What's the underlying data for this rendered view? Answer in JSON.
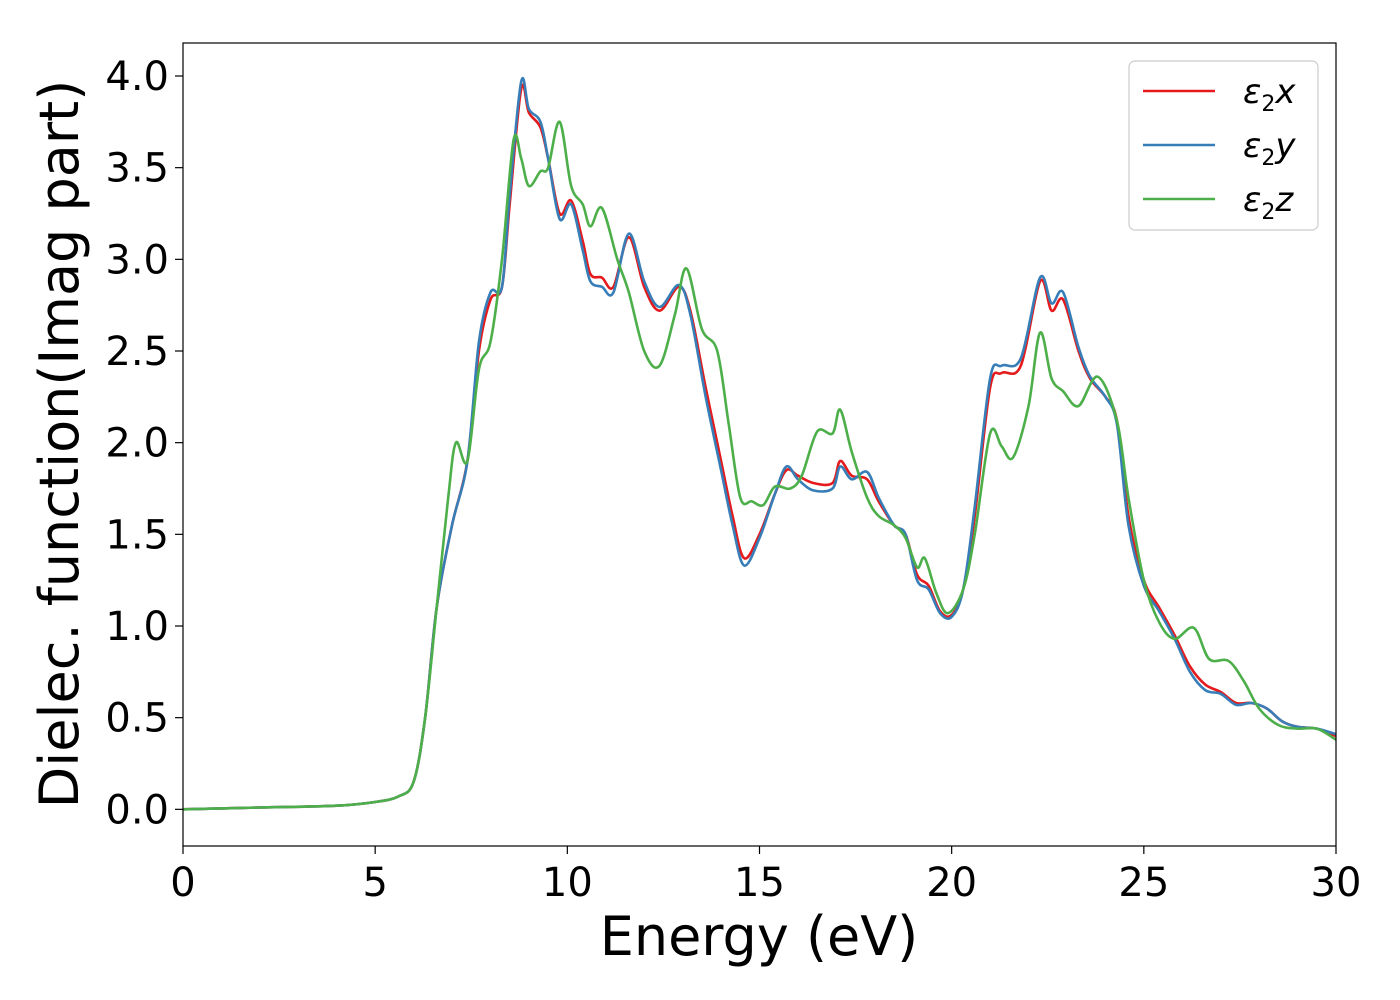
{
  "chart_data": {
    "type": "line",
    "title": "",
    "xlabel": "Energy (eV)",
    "ylabel": "Dielec. function(Imag part)",
    "xlim": [
      0,
      30
    ],
    "ylim": [
      -0.2,
      4.18
    ],
    "xticks": [
      0,
      5,
      10,
      15,
      20,
      25,
      30
    ],
    "yticks": [
      0.0,
      0.5,
      1.0,
      1.5,
      2.0,
      2.5,
      3.0,
      3.5,
      4.0
    ],
    "xtick_labels": [
      "0",
      "5",
      "10",
      "15",
      "20",
      "25",
      "30"
    ],
    "ytick_labels": [
      "0.0",
      "0.5",
      "1.0",
      "1.5",
      "2.0",
      "2.5",
      "3.0",
      "3.5",
      "4.0"
    ],
    "grid": false,
    "legend_position": "top-right",
    "series": [
      {
        "name": "ε2x",
        "legend_symbol": "ε",
        "legend_sub": "2",
        "legend_var": "x",
        "color": "#e41a1c",
        "points": [
          [
            0,
            0
          ],
          [
            2,
            0.01
          ],
          [
            4,
            0.02
          ],
          [
            5,
            0.04
          ],
          [
            5.6,
            0.07
          ],
          [
            6,
            0.15
          ],
          [
            6.3,
            0.5
          ],
          [
            6.6,
            1.1
          ],
          [
            7,
            1.55
          ],
          [
            7.4,
            1.9
          ],
          [
            7.7,
            2.5
          ],
          [
            8,
            2.78
          ],
          [
            8.3,
            2.85
          ],
          [
            8.5,
            3.3
          ],
          [
            8.8,
            3.93
          ],
          [
            9,
            3.8
          ],
          [
            9.3,
            3.72
          ],
          [
            9.5,
            3.55
          ],
          [
            9.8,
            3.25
          ],
          [
            10.1,
            3.32
          ],
          [
            10.4,
            3.1
          ],
          [
            10.6,
            2.92
          ],
          [
            10.9,
            2.9
          ],
          [
            11.2,
            2.85
          ],
          [
            11.6,
            3.12
          ],
          [
            12,
            2.85
          ],
          [
            12.4,
            2.72
          ],
          [
            12.9,
            2.85
          ],
          [
            13.2,
            2.72
          ],
          [
            13.6,
            2.3
          ],
          [
            14,
            1.9
          ],
          [
            14.3,
            1.6
          ],
          [
            14.6,
            1.37
          ],
          [
            15,
            1.5
          ],
          [
            15.4,
            1.72
          ],
          [
            15.7,
            1.85
          ],
          [
            16,
            1.82
          ],
          [
            16.4,
            1.78
          ],
          [
            16.9,
            1.78
          ],
          [
            17.1,
            1.9
          ],
          [
            17.4,
            1.82
          ],
          [
            17.8,
            1.8
          ],
          [
            18.1,
            1.68
          ],
          [
            18.5,
            1.55
          ],
          [
            18.8,
            1.5
          ],
          [
            19.1,
            1.28
          ],
          [
            19.4,
            1.22
          ],
          [
            19.7,
            1.08
          ],
          [
            20,
            1.06
          ],
          [
            20.3,
            1.2
          ],
          [
            20.6,
            1.6
          ],
          [
            21,
            2.3
          ],
          [
            21.3,
            2.38
          ],
          [
            21.8,
            2.42
          ],
          [
            22.3,
            2.88
          ],
          [
            22.6,
            2.72
          ],
          [
            22.9,
            2.78
          ],
          [
            23.3,
            2.5
          ],
          [
            23.6,
            2.35
          ],
          [
            24,
            2.25
          ],
          [
            24.3,
            2.12
          ],
          [
            24.6,
            1.6
          ],
          [
            25,
            1.25
          ],
          [
            25.4,
            1.1
          ],
          [
            25.8,
            0.95
          ],
          [
            26.2,
            0.78
          ],
          [
            26.6,
            0.68
          ],
          [
            27,
            0.64
          ],
          [
            27.4,
            0.58
          ],
          [
            27.8,
            0.58
          ],
          [
            28.2,
            0.55
          ],
          [
            28.6,
            0.48
          ],
          [
            29,
            0.45
          ],
          [
            29.5,
            0.44
          ],
          [
            30,
            0.4
          ]
        ]
      },
      {
        "name": "ε2y",
        "legend_symbol": "ε",
        "legend_sub": "2",
        "legend_var": "y",
        "color": "#377eb8",
        "points": [
          [
            0,
            0
          ],
          [
            2,
            0.01
          ],
          [
            4,
            0.02
          ],
          [
            5,
            0.04
          ],
          [
            5.6,
            0.07
          ],
          [
            6,
            0.15
          ],
          [
            6.3,
            0.5
          ],
          [
            6.6,
            1.1
          ],
          [
            7,
            1.55
          ],
          [
            7.4,
            1.9
          ],
          [
            7.7,
            2.55
          ],
          [
            8,
            2.82
          ],
          [
            8.3,
            2.85
          ],
          [
            8.5,
            3.35
          ],
          [
            8.8,
            3.97
          ],
          [
            9,
            3.82
          ],
          [
            9.3,
            3.75
          ],
          [
            9.5,
            3.55
          ],
          [
            9.8,
            3.22
          ],
          [
            10.1,
            3.3
          ],
          [
            10.4,
            3.05
          ],
          [
            10.6,
            2.88
          ],
          [
            10.9,
            2.85
          ],
          [
            11.2,
            2.82
          ],
          [
            11.6,
            3.14
          ],
          [
            12,
            2.88
          ],
          [
            12.4,
            2.74
          ],
          [
            12.9,
            2.86
          ],
          [
            13.2,
            2.7
          ],
          [
            13.6,
            2.25
          ],
          [
            14,
            1.85
          ],
          [
            14.3,
            1.55
          ],
          [
            14.6,
            1.33
          ],
          [
            15,
            1.48
          ],
          [
            15.4,
            1.72
          ],
          [
            15.7,
            1.87
          ],
          [
            16,
            1.8
          ],
          [
            16.4,
            1.74
          ],
          [
            16.9,
            1.75
          ],
          [
            17.1,
            1.87
          ],
          [
            17.4,
            1.8
          ],
          [
            17.8,
            1.84
          ],
          [
            18.1,
            1.7
          ],
          [
            18.5,
            1.55
          ],
          [
            18.8,
            1.5
          ],
          [
            19.1,
            1.25
          ],
          [
            19.4,
            1.2
          ],
          [
            19.7,
            1.07
          ],
          [
            20,
            1.05
          ],
          [
            20.3,
            1.2
          ],
          [
            20.6,
            1.65
          ],
          [
            21,
            2.35
          ],
          [
            21.3,
            2.42
          ],
          [
            21.8,
            2.46
          ],
          [
            22.3,
            2.9
          ],
          [
            22.6,
            2.76
          ],
          [
            22.9,
            2.82
          ],
          [
            23.3,
            2.52
          ],
          [
            23.6,
            2.36
          ],
          [
            24,
            2.25
          ],
          [
            24.3,
            2.1
          ],
          [
            24.6,
            1.55
          ],
          [
            25,
            1.22
          ],
          [
            25.4,
            1.08
          ],
          [
            25.8,
            0.93
          ],
          [
            26.2,
            0.75
          ],
          [
            26.6,
            0.65
          ],
          [
            27,
            0.63
          ],
          [
            27.4,
            0.57
          ],
          [
            27.8,
            0.58
          ],
          [
            28.2,
            0.55
          ],
          [
            28.6,
            0.48
          ],
          [
            29,
            0.45
          ],
          [
            29.5,
            0.44
          ],
          [
            30,
            0.41
          ]
        ]
      },
      {
        "name": "ε2z",
        "legend_symbol": "ε",
        "legend_sub": "2",
        "legend_var": "z",
        "color": "#4daf4a",
        "points": [
          [
            0,
            0
          ],
          [
            2,
            0.01
          ],
          [
            4,
            0.02
          ],
          [
            5,
            0.04
          ],
          [
            5.6,
            0.07
          ],
          [
            6,
            0.15
          ],
          [
            6.3,
            0.5
          ],
          [
            6.6,
            1.1
          ],
          [
            6.9,
            1.7
          ],
          [
            7.1,
            2.0
          ],
          [
            7.4,
            1.9
          ],
          [
            7.7,
            2.4
          ],
          [
            8,
            2.55
          ],
          [
            8.3,
            3.0
          ],
          [
            8.6,
            3.65
          ],
          [
            8.8,
            3.55
          ],
          [
            9,
            3.4
          ],
          [
            9.3,
            3.48
          ],
          [
            9.5,
            3.5
          ],
          [
            9.8,
            3.75
          ],
          [
            10.1,
            3.4
          ],
          [
            10.4,
            3.3
          ],
          [
            10.6,
            3.18
          ],
          [
            10.9,
            3.28
          ],
          [
            11.3,
            3.0
          ],
          [
            11.6,
            2.82
          ],
          [
            12,
            2.5
          ],
          [
            12.4,
            2.42
          ],
          [
            12.8,
            2.7
          ],
          [
            13.1,
            2.95
          ],
          [
            13.5,
            2.62
          ],
          [
            13.9,
            2.5
          ],
          [
            14.2,
            2.1
          ],
          [
            14.5,
            1.7
          ],
          [
            14.8,
            1.68
          ],
          [
            15.1,
            1.66
          ],
          [
            15.4,
            1.76
          ],
          [
            15.8,
            1.75
          ],
          [
            16.1,
            1.82
          ],
          [
            16.5,
            2.06
          ],
          [
            16.9,
            2.05
          ],
          [
            17.1,
            2.18
          ],
          [
            17.4,
            1.95
          ],
          [
            17.8,
            1.7
          ],
          [
            18.1,
            1.6
          ],
          [
            18.5,
            1.55
          ],
          [
            18.8,
            1.48
          ],
          [
            19.1,
            1.32
          ],
          [
            19.3,
            1.37
          ],
          [
            19.6,
            1.18
          ],
          [
            19.9,
            1.07
          ],
          [
            20.3,
            1.2
          ],
          [
            20.6,
            1.5
          ],
          [
            21,
            2.05
          ],
          [
            21.3,
            1.98
          ],
          [
            21.6,
            1.92
          ],
          [
            22,
            2.2
          ],
          [
            22.3,
            2.6
          ],
          [
            22.6,
            2.35
          ],
          [
            22.9,
            2.28
          ],
          [
            23.3,
            2.2
          ],
          [
            23.8,
            2.36
          ],
          [
            24.3,
            2.12
          ],
          [
            24.6,
            1.7
          ],
          [
            25,
            1.25
          ],
          [
            25.4,
            1.02
          ],
          [
            25.8,
            0.93
          ],
          [
            26.3,
            0.99
          ],
          [
            26.7,
            0.82
          ],
          [
            27.2,
            0.81
          ],
          [
            27.6,
            0.7
          ],
          [
            28,
            0.55
          ],
          [
            28.5,
            0.46
          ],
          [
            29,
            0.44
          ],
          [
            29.5,
            0.44
          ],
          [
            30,
            0.38
          ]
        ]
      }
    ]
  }
}
